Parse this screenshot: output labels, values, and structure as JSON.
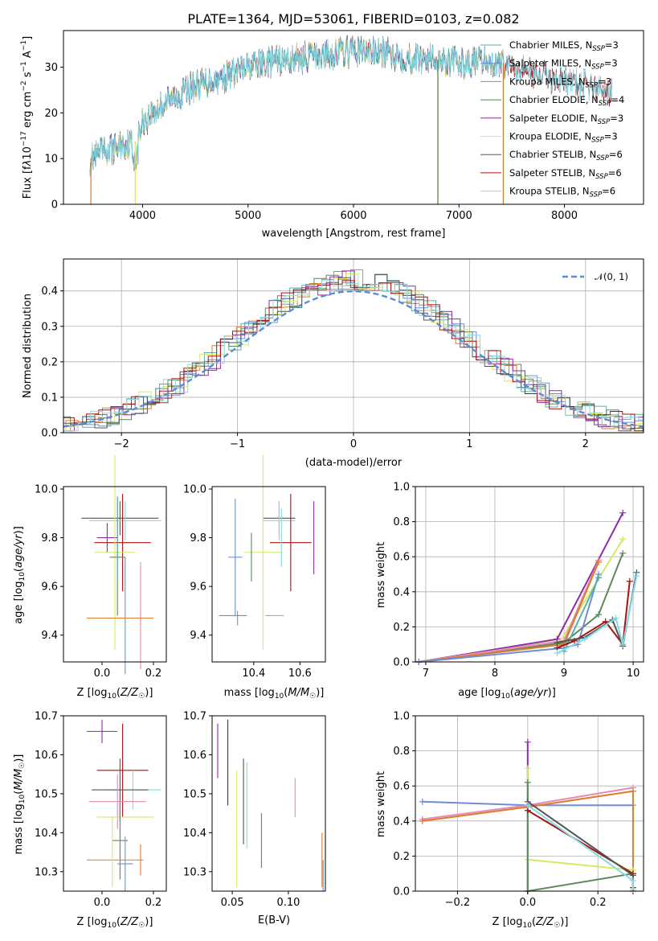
{
  "colors": {
    "Chabrier MILES": "#5ab0a6",
    "Salpeter MILES": "#6a8fd8",
    "Kroupa MILES": "#e07a2a",
    "Chabrier ELODIE": "#5a8a5e",
    "Salpeter ELODIE": "#8e2aa8",
    "Kroupa ELODIE": "#d6e864",
    "Chabrier STELIB": "#555555",
    "Salpeter STELIB": "#aa1010",
    "Kroupa STELIB": "#86d9e6",
    "pink": "#e28cb4",
    "normal": "#5b8bd6"
  },
  "chart_data": [
    {
      "id": "spectrum",
      "type": "line",
      "title": "PLATE=1364, MJD=53061, FIBERID=0103, z=0.082",
      "xlabel": "wavelength [Angstrom, rest frame]",
      "ylabel": "Flux [f_λ 10^-17 erg cm^-2 s^-1 A^-1]",
      "xlim": [
        3250,
        8750
      ],
      "ylim": [
        0,
        38
      ],
      "xticks": [
        "4000",
        "5000",
        "6000",
        "7000",
        "8000"
      ],
      "yticks": [
        "0",
        "10",
        "20",
        "30"
      ],
      "grid": false,
      "legend_position": "top-right",
      "series": [
        {
          "name": "Chabrier MILES, N_SSP=3"
        },
        {
          "name": "Salpeter MILES, N_SSP=3"
        },
        {
          "name": "Kroupa MILES, N_SSP=3"
        },
        {
          "name": "Chabrier ELODIE, N_SSP=4"
        },
        {
          "name": "Salpeter ELODIE, N_SSP=3"
        },
        {
          "name": "Kroupa ELODIE, N_SSP=3"
        },
        {
          "name": "Chabrier STELIB, N_SSP=6"
        },
        {
          "name": "Salpeter STELIB, N_SSP=6"
        },
        {
          "name": "Kroupa STELIB, N_SSP=6"
        }
      ],
      "continuum": {
        "x": [
          3500,
          3700,
          3950,
          4000,
          4200,
          4500,
          4800,
          5000,
          5200,
          5500,
          5800,
          6000,
          6300,
          6500,
          6700,
          7000,
          7200,
          7400,
          7600,
          7800,
          8000,
          8200,
          8400
        ],
        "y": [
          10,
          12,
          14,
          18,
          22,
          26,
          28,
          30,
          31,
          32,
          33,
          33.5,
          33,
          32,
          32,
          31,
          31,
          31,
          30,
          28,
          27,
          26,
          25
        ]
      }
    },
    {
      "id": "residuals",
      "type": "histogram",
      "xlabel": "(data-model)/error",
      "ylabel": "Normed distribution",
      "xlim": [
        -2.5,
        2.5
      ],
      "ylim": [
        0,
        0.49
      ],
      "xticks": [
        "−2",
        "−1",
        "0",
        "1",
        "2"
      ],
      "yticks": [
        "0.0",
        "0.1",
        "0.2",
        "0.3",
        "0.4"
      ],
      "grid": true,
      "legend": "𝒩(0, 1)"
    },
    {
      "id": "age-vs-Z",
      "type": "errorbar",
      "xlabel": "Z [log10(Z/Z☉)]",
      "ylabel": "age [log10(age/yr)]",
      "xlim": [
        -0.15,
        0.25
      ],
      "ylim": [
        9.29,
        10.01
      ],
      "xticks": [
        "0.0",
        "0.2"
      ],
      "yticks": [
        "9.4",
        "9.6",
        "9.8",
        "10.0"
      ],
      "points": [
        {
          "c": "Chabrier STELIB",
          "x": 0.07,
          "y": 9.88,
          "ex": 0.15,
          "ey": 0.07
        },
        {
          "c": "Kroupa STELIB",
          "x": 0.09,
          "y": 9.87,
          "ex": 0.14,
          "ey": 0.08
        },
        {
          "c": "Salpeter STELIB",
          "x": 0.08,
          "y": 9.78,
          "ex": 0.11,
          "ey": 0.2
        },
        {
          "c": "Salpeter ELODIE",
          "x": 0.02,
          "y": 9.8,
          "ex": 0.04,
          "ey": 0.06
        },
        {
          "c": "Kroupa ELODIE",
          "x": 0.05,
          "y": 9.74,
          "ex": 0.08,
          "ey": 0.4
        },
        {
          "c": "Chabrier ELODIE",
          "x": 0.06,
          "y": 9.72,
          "ex": 0.03,
          "ey": 0.24
        },
        {
          "c": "Chabrier MILES",
          "x": 0.06,
          "y": 9.8,
          "ex": 0.0,
          "ey": 0.17
        },
        {
          "c": "Salpeter MILES",
          "x": 0.09,
          "y": 9.48,
          "ex": 0.0,
          "ey": 0.24
        },
        {
          "c": "Kroupa MILES",
          "x": 0.15,
          "y": 9.47,
          "ex": 0.05,
          "ey": 0.03
        },
        {
          "c": "pink",
          "x": 0.15,
          "y": 9.48,
          "ex": 0.0,
          "ey": 0.22
        },
        {
          "c": "Kroupa MILES",
          "x": 0.05,
          "y": 9.47,
          "ex": 0.11,
          "ey": 0.0
        }
      ]
    },
    {
      "id": "age-vs-mass",
      "type": "errorbar",
      "xlabel": "mass [log10(M/M☉)]",
      "ylabel": "",
      "xlim": [
        10.22,
        10.71
      ],
      "ylim": [
        9.29,
        10.01
      ],
      "xticks": [
        "10.4",
        "10.6"
      ],
      "yticks": [
        "9.4",
        "9.6",
        "9.8",
        "10.0"
      ],
      "points": [
        {
          "c": "Chabrier STELIB",
          "x": 10.51,
          "y": 9.88,
          "ex": 0.07,
          "ey": 0.07
        },
        {
          "c": "Kroupa STELIB",
          "x": 10.51,
          "y": 9.87,
          "ex": 0.07,
          "ey": 0.08
        },
        {
          "c": "Salpeter STELIB",
          "x": 10.56,
          "y": 9.78,
          "ex": 0.09,
          "ey": 0.2
        },
        {
          "c": "Salpeter ELODIE",
          "x": 10.66,
          "y": 9.8,
          "ex": 0.0,
          "ey": 0.15
        },
        {
          "c": "Kroupa ELODIE",
          "x": 10.44,
          "y": 9.74,
          "ex": 0.08,
          "ey": 0.4
        },
        {
          "c": "Chabrier ELODIE",
          "x": 10.39,
          "y": 9.72,
          "ex": 0.0,
          "ey": 0.1
        },
        {
          "c": "Salpeter MILES",
          "x": 10.32,
          "y": 9.72,
          "ex": 0.03,
          "ey": 0.24
        },
        {
          "c": "Salpeter MILES",
          "x": 10.31,
          "y": 9.48,
          "ex": 0.06,
          "ey": 0.0
        },
        {
          "c": "Kroupa MILES",
          "x": 10.33,
          "y": 9.47,
          "ex": 0.0,
          "ey": 0.03
        },
        {
          "c": "pink",
          "x": 10.49,
          "y": 9.48,
          "ex": 0.04,
          "ey": 0.0
        },
        {
          "c": "Kroupa STELIB",
          "x": 10.52,
          "y": 9.8,
          "ex": 0.0,
          "ey": 0.12
        }
      ]
    },
    {
      "id": "mass-weight-vs-age",
      "type": "line",
      "xlabel": "age [log10(age/yr)]",
      "ylabel": "mass weight",
      "xlim": [
        6.85,
        10.15
      ],
      "ylim": [
        0,
        1
      ],
      "xticks": [
        "7",
        "8",
        "9",
        "10"
      ],
      "yticks": [
        "0.0",
        "0.2",
        "0.4",
        "0.6",
        "0.8",
        "1.0"
      ],
      "grid": true,
      "series": [
        {
          "c": "Salpeter ELODIE",
          "x": [
            6.9,
            8.9,
            9.85
          ],
          "y": [
            0.0,
            0.13,
            0.85
          ]
        },
        {
          "c": "Kroupa ELODIE",
          "x": [
            6.9,
            8.95,
            9.85
          ],
          "y": [
            0.0,
            0.12,
            0.7
          ]
        },
        {
          "c": "Chabrier ELODIE",
          "x": [
            6.9,
            9.0,
            9.5,
            9.85
          ],
          "y": [
            0.0,
            0.11,
            0.27,
            0.62
          ]
        },
        {
          "c": "pink",
          "x": [
            6.9,
            9.0,
            9.5
          ],
          "y": [
            0.0,
            0.12,
            0.58
          ]
        },
        {
          "c": "Kroupa MILES",
          "x": [
            6.9,
            9.0,
            9.5
          ],
          "y": [
            0.0,
            0.1,
            0.57
          ]
        },
        {
          "c": "Salpeter MILES",
          "x": [
            6.9,
            9.0,
            9.2,
            9.5
          ],
          "y": [
            0.0,
            0.08,
            0.1,
            0.5
          ]
        },
        {
          "c": "Chabrier MILES",
          "x": [
            9.0,
            9.5
          ],
          "y": [
            0.06,
            0.48
          ]
        },
        {
          "c": "Salpeter STELIB",
          "x": [
            8.9,
            9.15,
            9.6,
            9.85,
            9.95
          ],
          "y": [
            0.08,
            0.12,
            0.23,
            0.1,
            0.46
          ]
        },
        {
          "c": "Chabrier STELIB",
          "x": [
            8.9,
            9.3,
            9.7,
            9.85,
            10.05
          ],
          "y": [
            0.11,
            0.14,
            0.24,
            0.09,
            0.51
          ]
        },
        {
          "c": "Kroupa STELIB",
          "x": [
            8.9,
            9.3,
            9.75,
            9.85,
            10.05
          ],
          "y": [
            0.05,
            0.13,
            0.25,
            0.1,
            0.49
          ]
        }
      ]
    },
    {
      "id": "mass-vs-Z",
      "type": "errorbar",
      "xlabel": "Z [log10(Z/Z☉)]",
      "ylabel": "mass [log10(M/M☉)]",
      "xlim": [
        -0.15,
        0.25
      ],
      "ylim": [
        10.25,
        10.7
      ],
      "xticks": [
        "0.0",
        "0.2"
      ],
      "yticks": [
        "10.3",
        "10.4",
        "10.5",
        "10.6",
        "10.7"
      ],
      "points": [
        {
          "c": "Salpeter ELODIE",
          "x": 0.0,
          "y": 10.66,
          "ex": 0.06,
          "ey": 0.03
        },
        {
          "c": "Salpeter STELIB",
          "x": 0.08,
          "y": 10.56,
          "ex": 0.1,
          "ey": 0.12
        },
        {
          "c": "Kroupa STELIB",
          "x": 0.12,
          "y": 10.51,
          "ex": 0.11,
          "ey": 0.05
        },
        {
          "c": "Chabrier STELIB",
          "x": 0.07,
          "y": 10.51,
          "ex": 0.11,
          "ey": 0.08
        },
        {
          "c": "pink",
          "x": 0.06,
          "y": 10.48,
          "ex": 0.11,
          "ey": 0.07
        },
        {
          "c": "Kroupa ELODIE",
          "x": 0.09,
          "y": 10.44,
          "ex": 0.11,
          "ey": 0.0
        },
        {
          "c": "Chabrier ELODIE",
          "x": 0.07,
          "y": 10.38,
          "ex": 0.03,
          "ey": 0.1
        },
        {
          "c": "Kroupa MILES",
          "x": 0.15,
          "y": 10.33,
          "ex": 0.0,
          "ey": 0.04
        },
        {
          "c": "Kroupa MILES",
          "x": 0.05,
          "y": 10.33,
          "ex": 0.11,
          "ey": 0.0
        },
        {
          "c": "Salpeter MILES",
          "x": 0.09,
          "y": 10.32,
          "ex": 0.03,
          "ey": 0.07
        },
        {
          "c": "Kroupa ELODIE",
          "x": 0.04,
          "y": 10.35,
          "ex": 0.0,
          "ey": 0.09
        }
      ]
    },
    {
      "id": "mass-vs-ebv",
      "type": "errorbar",
      "xlabel": "E(B-V)",
      "ylabel": "",
      "xlim": [
        0.032,
        0.133
      ],
      "ylim": [
        10.25,
        10.7
      ],
      "xticks": [
        "0.05",
        "0.10"
      ],
      "yticks": [
        "10.3",
        "10.4",
        "10.5",
        "10.6",
        "10.7"
      ],
      "points": [
        {
          "c": "Salpeter ELODIE",
          "x": 0.037,
          "y": 10.61,
          "ey": 0.07
        },
        {
          "c": "Salpeter STELIB",
          "x": 0.046,
          "y": 10.58,
          "ey": 0.11
        },
        {
          "c": "Kroupa ELODIE",
          "x": 0.054,
          "y": 10.41,
          "ey": 0.15
        },
        {
          "c": "Chabrier STELIB",
          "x": 0.06,
          "y": 10.48,
          "ey": 0.11
        },
        {
          "c": "Kroupa STELIB",
          "x": 0.063,
          "y": 10.47,
          "ey": 0.11
        },
        {
          "c": "Chabrier ELODIE",
          "x": 0.076,
          "y": 10.38,
          "ey": 0.07
        },
        {
          "c": "pink",
          "x": 0.106,
          "y": 10.49,
          "ey": 0.05
        },
        {
          "c": "Kroupa MILES",
          "x": 0.13,
          "y": 10.33,
          "ey": 0.07
        },
        {
          "c": "Salpeter MILES",
          "x": 0.131,
          "y": 10.29,
          "ey": 0.04
        }
      ]
    },
    {
      "id": "mass-weight-vs-Z",
      "type": "line",
      "xlabel": "Z [log10(Z/Z☉)]",
      "ylabel": "mass weight",
      "xlim": [
        -0.32,
        0.33
      ],
      "ylim": [
        0,
        1
      ],
      "xticks": [
        "−0.2",
        "0.0",
        "0.2"
      ],
      "yticks": [
        "0.0",
        "0.2",
        "0.4",
        "0.6",
        "0.8",
        "1.0"
      ],
      "grid": true,
      "series": [
        {
          "c": "Salpeter MILES",
          "x": [
            -0.3,
            0.0,
            0.3
          ],
          "y": [
            0.51,
            0.49,
            0.49
          ]
        },
        {
          "c": "pink",
          "x": [
            -0.3,
            0.0,
            0.3
          ],
          "y": [
            0.41,
            0.49,
            0.59
          ]
        },
        {
          "c": "Kroupa MILES",
          "x": [
            -0.3,
            0.0,
            0.3,
            0.3
          ],
          "y": [
            0.4,
            0.48,
            0.57,
            0.1
          ]
        },
        {
          "c": "Salpeter ELODIE",
          "x": [
            0.0,
            0.0
          ],
          "y": [
            0.0,
            0.85
          ]
        },
        {
          "c": "Kroupa ELODIE",
          "x": [
            0.0,
            0.0,
            0.3,
            0.3
          ],
          "y": [
            0.7,
            0.18,
            0.12,
            0.0
          ]
        },
        {
          "c": "Chabrier ELODIE",
          "x": [
            0.0,
            0.0,
            0.3
          ],
          "y": [
            0.62,
            0.0,
            0.1
          ]
        },
        {
          "c": "Salpeter STELIB",
          "x": [
            0.0,
            0.3,
            0.3
          ],
          "y": [
            0.46,
            0.1,
            0.0
          ]
        },
        {
          "c": "Chabrier STELIB",
          "x": [
            0.0,
            0.3,
            0.3
          ],
          "y": [
            0.51,
            0.09,
            0.02
          ]
        },
        {
          "c": "Kroupa STELIB",
          "x": [
            0.0,
            0.3,
            0.3
          ],
          "y": [
            0.49,
            0.06,
            0.01
          ]
        }
      ]
    }
  ]
}
